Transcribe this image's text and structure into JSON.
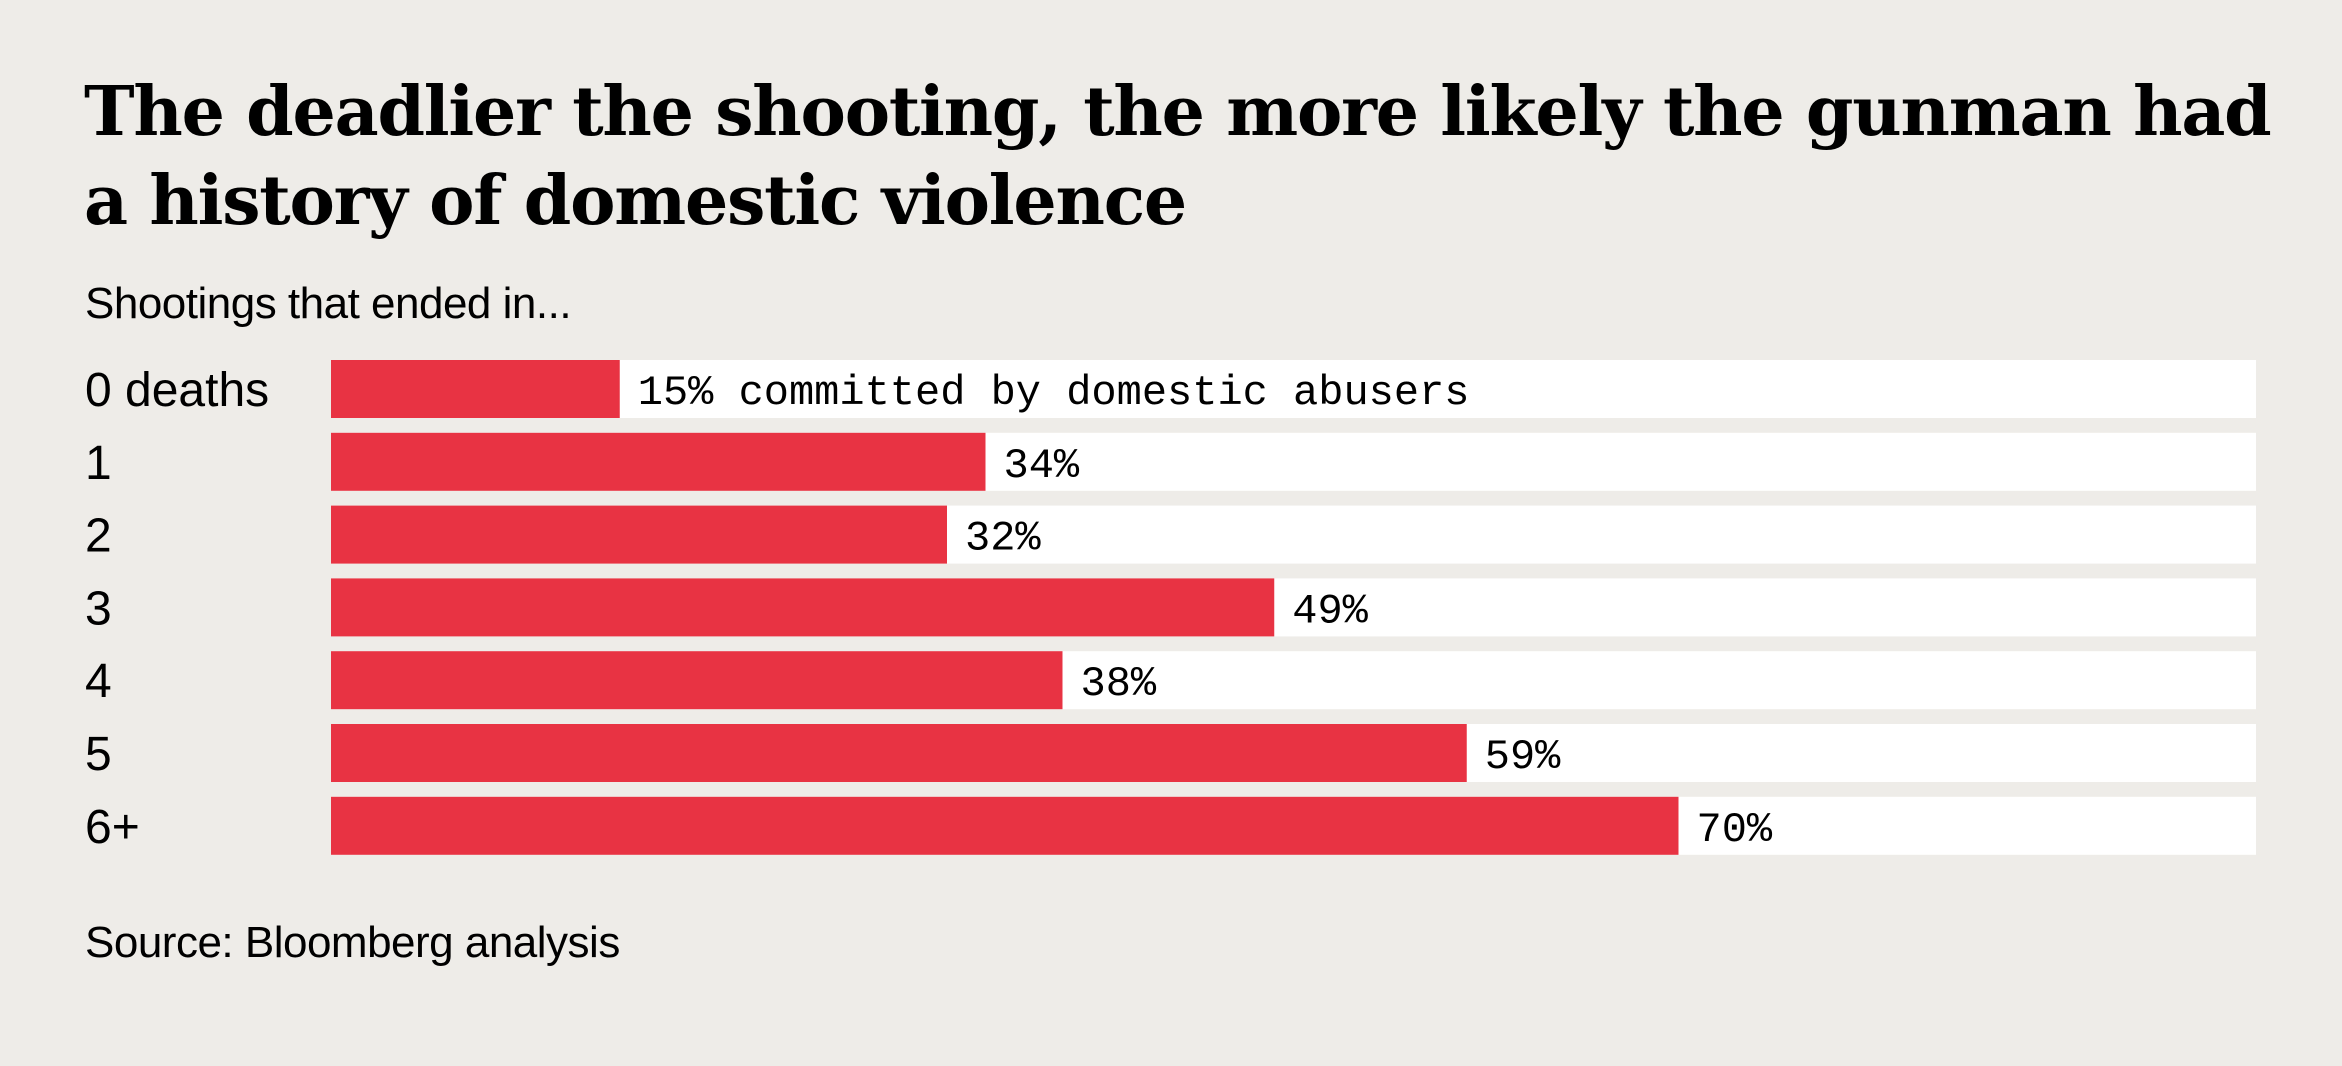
{
  "chart_data": {
    "type": "bar",
    "orientation": "horizontal",
    "title": "The deadlier the shooting, the more likely the gunman had a history of domestic violence",
    "title_lines": [
      "The deadlier the shooting, the more likely the gunman had",
      "a history of domestic violence"
    ],
    "subtitle": "Shootings that ended in...",
    "categories": [
      "0 deaths",
      "1",
      "2",
      "3",
      "4",
      "5",
      "6+"
    ],
    "values": [
      15,
      34,
      32,
      49,
      38,
      59,
      70
    ],
    "value_labels": [
      "15% committed by domestic abusers",
      "34%",
      "32%",
      "49%",
      "38%",
      "59%",
      "70%"
    ],
    "unit": "%",
    "xlim": [
      0,
      100
    ],
    "xlabel": "",
    "ylabel": "",
    "grid": false,
    "legend": "none",
    "source": "Source: Bloomberg analysis",
    "colors": {
      "bar": "#E83343",
      "track": "#FFFFFF",
      "background": "#EEECE8",
      "text": "#000000"
    }
  }
}
